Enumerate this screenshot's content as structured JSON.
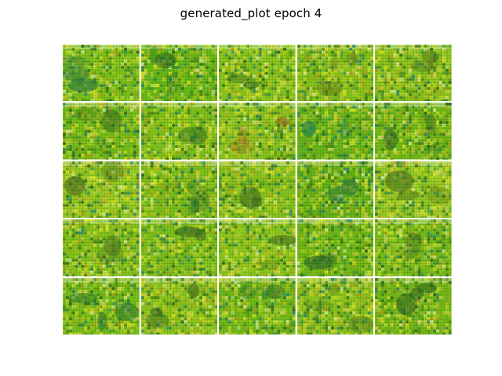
{
  "title": "generated_plot epoch 4",
  "grid": {
    "rows": 5,
    "cols": 5,
    "tiles": [
      {
        "bg": "#7fc51a",
        "blob": "#1c6a44"
      },
      {
        "bg": "#69bc16",
        "blob": "#1f5b22"
      },
      {
        "bg": "#8dc91c",
        "blob": "#2a5a2c"
      },
      {
        "bg": "#8ac51b",
        "blob": "#5d7a1b"
      },
      {
        "bg": "#8fc81e",
        "blob": "#4f751d"
      },
      {
        "bg": "#77bf18",
        "blob": "#30601f"
      },
      {
        "bg": "#84c51a",
        "blob": "#2a6a25"
      },
      {
        "bg": "#8cc71f",
        "blob": "#8b5a1a"
      },
      {
        "bg": "#69b719",
        "blob": "#1b7a55"
      },
      {
        "bg": "#74bb18",
        "blob": "#2c5f23"
      },
      {
        "bg": "#98cd22",
        "blob": "#41621e"
      },
      {
        "bg": "#80c21a",
        "blob": "#1e5f30"
      },
      {
        "bg": "#88c41d",
        "blob": "#3b6920"
      },
      {
        "bg": "#66b417",
        "blob": "#1a6a45"
      },
      {
        "bg": "#95cd24",
        "blob": "#4a6f1c"
      },
      {
        "bg": "#86c51b",
        "blob": "#3d6a20"
      },
      {
        "bg": "#7ec21b",
        "blob": "#2f6420"
      },
      {
        "bg": "#8dc91d",
        "blob": "#45701e"
      },
      {
        "bg": "#72bb17",
        "blob": "#245f27"
      },
      {
        "bg": "#7cc01a",
        "blob": "#3a6822"
      },
      {
        "bg": "#79c01a",
        "blob": "#1c6a2f"
      },
      {
        "bg": "#8ec71d",
        "blob": "#366422"
      },
      {
        "bg": "#73bd19",
        "blob": "#2a6a2c"
      },
      {
        "bg": "#8cc61e",
        "blob": "#466e1f"
      },
      {
        "bg": "#76bb18",
        "blob": "#2b5f22"
      }
    ]
  }
}
